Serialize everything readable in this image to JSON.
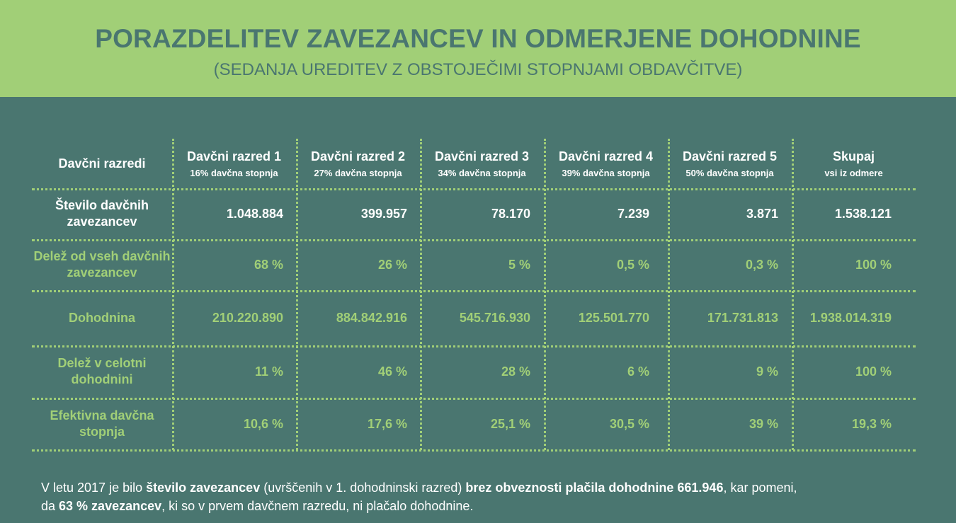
{
  "header": {
    "title": "PORAZDELITEV ZAVEZANCEV IN ODMERJENE DOHODNINE",
    "subtitle": "(SEDANJA UREDITEV Z OBSTOJEČIMI STOPNJAMI OBDAVČITVE)"
  },
  "colors": {
    "background": "#4a7670",
    "accent": "#a1cf77",
    "text": "#ffffff"
  },
  "chart_data": {
    "type": "table",
    "title": "PORAZDELITEV ZAVEZANCEV IN ODMERJENE DOHODNINE",
    "subtitle": "(SEDANJA UREDITEV Z OBSTOJEČIMI STOPNJAMI OBDAVČITVE)",
    "corner_label": "Davčni razredi",
    "columns": [
      {
        "name": "Davčni razred 1",
        "sub": "16% davčna stopnja"
      },
      {
        "name": "Davčni razred 2",
        "sub": "27% davčna stopnja"
      },
      {
        "name": "Davčni razred 3",
        "sub": "34% davčna stopnja"
      },
      {
        "name": "Davčni razred 4",
        "sub": "39% davčna stopnja"
      },
      {
        "name": "Davčni razred 5",
        "sub": "50% davčna stopnja"
      },
      {
        "name": "Skupaj",
        "sub": "vsi iz odmere"
      }
    ],
    "rows": [
      {
        "label": "Število davčnih zavezancev",
        "values": [
          "1.048.884",
          "399.957",
          "78.170",
          "7.239",
          "3.871",
          "1.538.121"
        ]
      },
      {
        "label": "Delež od vseh davčnih zavezancev",
        "values": [
          "68 %",
          "26 %",
          "5 %",
          "0,5 %",
          "0,3 %",
          "100 %"
        ]
      },
      {
        "label": "Dohodnina",
        "values": [
          "210.220.890",
          "884.842.916",
          "545.716.930",
          "125.501.770",
          "171.731.813",
          "1.938.014.319"
        ]
      },
      {
        "label": "Delež v celotni dohodnini",
        "values": [
          "11 %",
          "46 %",
          "28 %",
          "6 %",
          "9 %",
          "100 %"
        ]
      },
      {
        "label": "Efektivna davčna stopnja",
        "values": [
          "10,6 %",
          "17,6 %",
          "25,1 %",
          "30,5 %",
          "39 %",
          "19,3 %"
        ]
      }
    ]
  },
  "footer": {
    "p1": "V letu 2017 je bilo ",
    "b1": "število zavezancev",
    "p2": " (uvrščenih v 1. dohodninski razred) ",
    "b2": "brez obveznosti plačila dohodnine 661.946",
    "p3": ", kar pomeni,",
    "p4": "da ",
    "b3": "63 % zavezancev",
    "p5": ", ki so v prvem davčnem razredu, ni plačalo dohodnine."
  }
}
